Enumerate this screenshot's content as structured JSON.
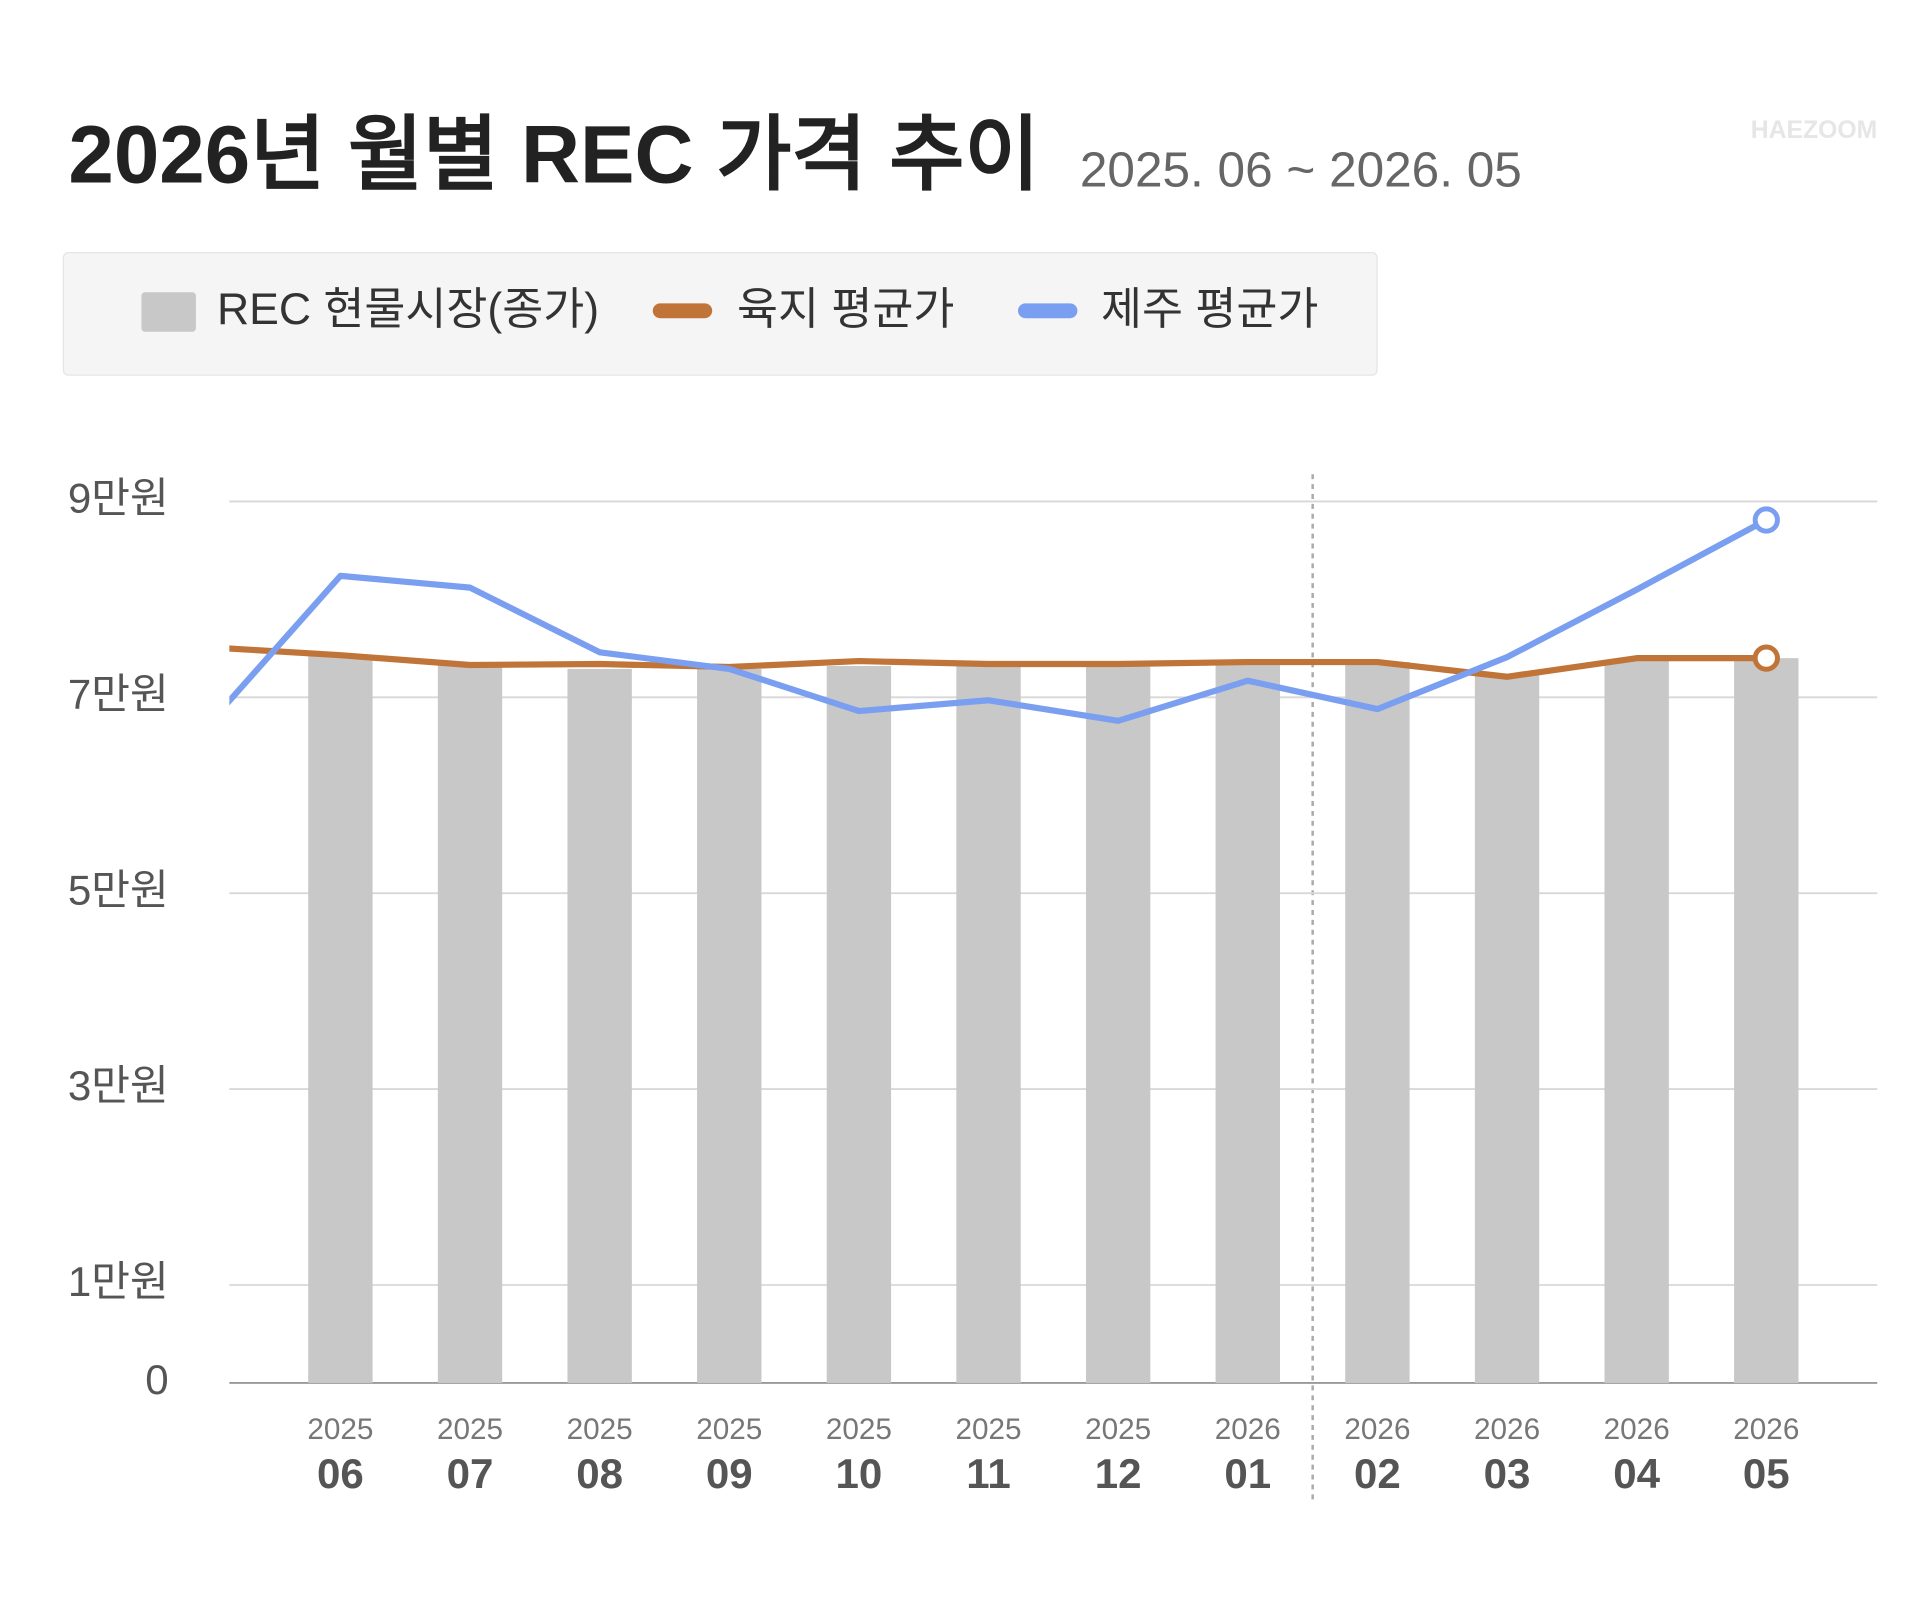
{
  "chart_data": {
    "type": "bar_line",
    "title": "2026년 월별 REC 가격 추이",
    "subtitle": "2025. 06 ~ 2026. 05",
    "watermark": "HAEZOOM",
    "categories": [
      null,
      [
        "2025",
        "06"
      ],
      [
        "2025",
        "07"
      ],
      [
        "2025",
        "08"
      ],
      [
        "2025",
        "09"
      ],
      [
        "2025",
        "10"
      ],
      [
        "2025",
        "11"
      ],
      [
        "2025",
        "12"
      ],
      [
        "2026",
        "01"
      ],
      [
        "2026",
        "02"
      ],
      [
        "2026",
        "03"
      ],
      [
        "2026",
        "04"
      ],
      [
        "2026",
        "05"
      ]
    ],
    "series": [
      {
        "name": "REC 현물시장(종가)",
        "type": "bar",
        "color": "#c8c8c8",
        "values": [
          null,
          7.42,
          7.36,
          7.29,
          7.29,
          7.32,
          7.33,
          7.33,
          7.35,
          7.36,
          7.23,
          7.38,
          7.4
        ]
      },
      {
        "name": "육지 평균가",
        "type": "line",
        "color": "#c07438",
        "values": [
          7.51,
          7.43,
          7.33,
          7.34,
          7.31,
          7.37,
          7.34,
          7.34,
          7.36,
          7.36,
          7.21,
          7.4,
          7.4
        ]
      },
      {
        "name": "제주 평균가",
        "type": "line",
        "color": "#7b9ff0",
        "values": [
          6.75,
          8.24,
          8.12,
          7.46,
          7.29,
          6.86,
          6.97,
          6.76,
          7.17,
          6.88,
          7.41,
          8.1,
          8.81
        ]
      }
    ],
    "ylim": [
      0,
      9
    ],
    "yticks": [
      0,
      {
        "value": 1,
        "label": "1만원"
      },
      {
        "value": 3,
        "label": "3만원"
      },
      {
        "value": 5,
        "label": "5만원"
      },
      {
        "value": 7,
        "label": "7만원"
      },
      {
        "value": 9,
        "label": "9만원"
      }
    ],
    "grid": true
  }
}
